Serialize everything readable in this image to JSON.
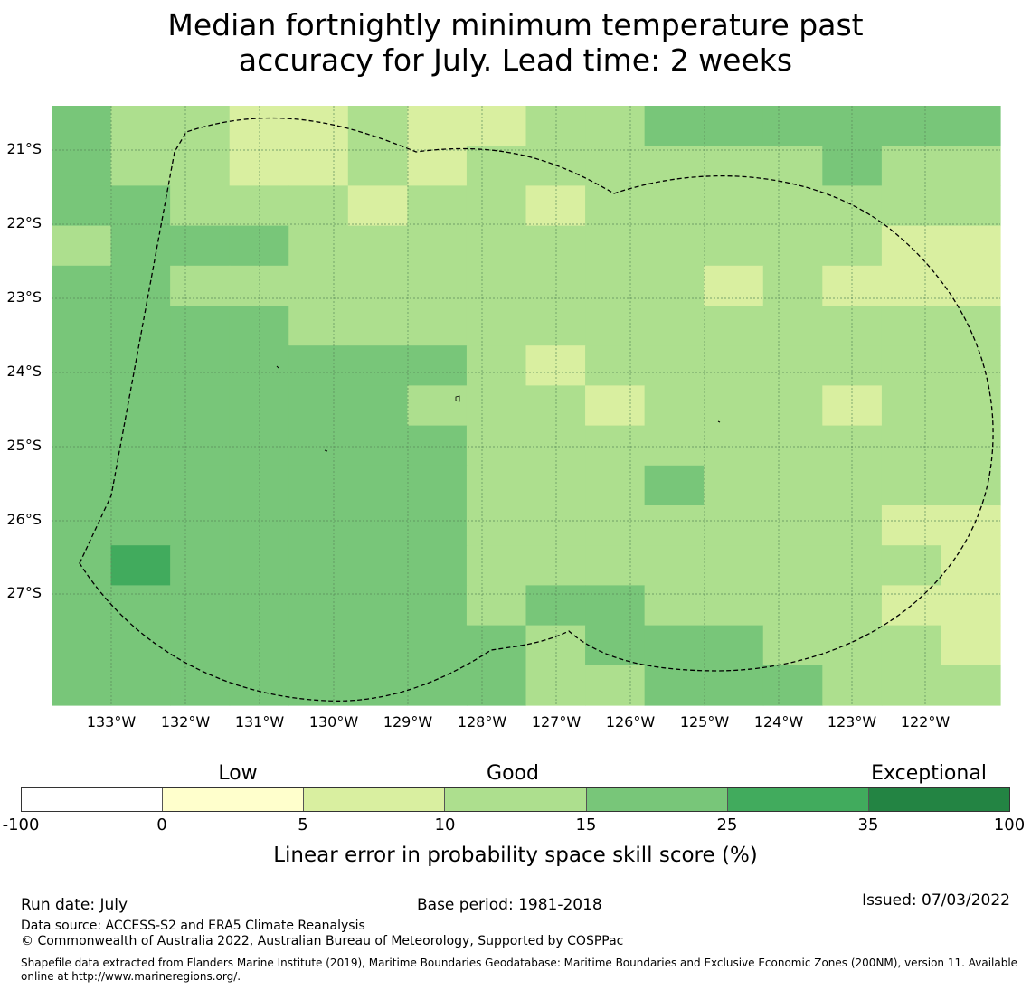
{
  "title": {
    "line1": "Median fortnightly minimum temperature past",
    "line2": "accuracy for July. Lead time: 2 weeks"
  },
  "map": {
    "lat_labels": [
      "21°S",
      "22°S",
      "23°S",
      "24°S",
      "25°S",
      "26°S",
      "27°S"
    ],
    "lon_labels": [
      "133°W",
      "132°W",
      "131°W",
      "130°W",
      "129°W",
      "128°W",
      "127°W",
      "126°W",
      "125°W",
      "124°W",
      "123°W",
      "122°W"
    ],
    "bin_colors": {
      "5-10": "#d9efa0",
      "10-15": "#addf8e",
      "15-25": "#78c679",
      "25-35": "#41ab5d"
    },
    "grid": [
      [
        "15-25",
        "10-15",
        "10-15",
        "5-10",
        "5-10",
        "10-15",
        "5-10",
        "5-10",
        "10-15",
        "10-15",
        "15-25",
        "15-25",
        "15-25",
        "15-25",
        "15-25",
        "15-25"
      ],
      [
        "15-25",
        "10-15",
        "10-15",
        "5-10",
        "5-10",
        "10-15",
        "5-10",
        "10-15",
        "10-15",
        "10-15",
        "10-15",
        "10-15",
        "10-15",
        "15-25",
        "10-15",
        "10-15"
      ],
      [
        "15-25",
        "15-25",
        "10-15",
        "10-15",
        "10-15",
        "5-10",
        "10-15",
        "10-15",
        "5-10",
        "10-15",
        "10-15",
        "10-15",
        "10-15",
        "10-15",
        "10-15",
        "10-15"
      ],
      [
        "10-15",
        "15-25",
        "15-25",
        "15-25",
        "10-15",
        "10-15",
        "10-15",
        "10-15",
        "10-15",
        "10-15",
        "10-15",
        "10-15",
        "10-15",
        "10-15",
        "5-10",
        "5-10"
      ],
      [
        "15-25",
        "15-25",
        "10-15",
        "10-15",
        "10-15",
        "10-15",
        "10-15",
        "10-15",
        "10-15",
        "10-15",
        "10-15",
        "5-10",
        "10-15",
        "5-10",
        "5-10",
        "5-10"
      ],
      [
        "15-25",
        "15-25",
        "15-25",
        "15-25",
        "10-15",
        "10-15",
        "10-15",
        "10-15",
        "10-15",
        "10-15",
        "10-15",
        "10-15",
        "10-15",
        "10-15",
        "10-15",
        "10-15"
      ],
      [
        "15-25",
        "15-25",
        "15-25",
        "15-25",
        "15-25",
        "15-25",
        "15-25",
        "10-15",
        "5-10",
        "10-15",
        "10-15",
        "10-15",
        "10-15",
        "10-15",
        "10-15",
        "10-15"
      ],
      [
        "15-25",
        "15-25",
        "15-25",
        "15-25",
        "15-25",
        "15-25",
        "10-15",
        "10-15",
        "10-15",
        "5-10",
        "10-15",
        "10-15",
        "10-15",
        "5-10",
        "10-15",
        "10-15"
      ],
      [
        "15-25",
        "15-25",
        "15-25",
        "15-25",
        "15-25",
        "15-25",
        "15-25",
        "10-15",
        "10-15",
        "10-15",
        "10-15",
        "10-15",
        "10-15",
        "10-15",
        "10-15",
        "10-15"
      ],
      [
        "15-25",
        "15-25",
        "15-25",
        "15-25",
        "15-25",
        "15-25",
        "15-25",
        "10-15",
        "10-15",
        "10-15",
        "15-25",
        "10-15",
        "10-15",
        "10-15",
        "10-15",
        "10-15"
      ],
      [
        "15-25",
        "15-25",
        "15-25",
        "15-25",
        "15-25",
        "15-25",
        "15-25",
        "10-15",
        "10-15",
        "10-15",
        "10-15",
        "10-15",
        "10-15",
        "10-15",
        "5-10",
        "5-10"
      ],
      [
        "15-25",
        "25-35",
        "15-25",
        "15-25",
        "15-25",
        "15-25",
        "15-25",
        "10-15",
        "10-15",
        "10-15",
        "10-15",
        "10-15",
        "10-15",
        "10-15",
        "10-15",
        "5-10"
      ],
      [
        "15-25",
        "15-25",
        "15-25",
        "15-25",
        "15-25",
        "15-25",
        "15-25",
        "10-15",
        "15-25",
        "15-25",
        "10-15",
        "10-15",
        "10-15",
        "10-15",
        "5-10",
        "5-10"
      ],
      [
        "15-25",
        "15-25",
        "15-25",
        "15-25",
        "15-25",
        "15-25",
        "15-25",
        "15-25",
        "10-15",
        "15-25",
        "15-25",
        "15-25",
        "10-15",
        "10-15",
        "10-15",
        "5-10"
      ],
      [
        "15-25",
        "15-25",
        "15-25",
        "15-25",
        "15-25",
        "15-25",
        "15-25",
        "15-25",
        "10-15",
        "10-15",
        "15-25",
        "15-25",
        "15-25",
        "10-15",
        "10-15",
        "10-15"
      ]
    ]
  },
  "colorbar": {
    "category_labels": [
      "Low",
      "Good",
      "Exceptional"
    ],
    "ticks": [
      "-100",
      "0",
      "5",
      "10",
      "15",
      "25",
      "35",
      "100"
    ],
    "colors": [
      "#ffffff",
      "#ffffcc",
      "#d9efa0",
      "#addf8e",
      "#78c679",
      "#41ab5d",
      "#238443"
    ],
    "axis_label": "Linear error in probability space skill score (%)"
  },
  "footer": {
    "run_date": "Run date: July",
    "base_period": "Base period: 1981-2018",
    "issued": "Issued: 07/03/2022",
    "data_source": "Data source: ACCESS-S2 and ERA5 Climate Reanalysis",
    "copyright": "© Commonwealth of Australia 2022, Australian Bureau of Meteorology, Supported by COSPPac",
    "shapefile_1": "Shapefile data extracted from Flanders Marine Institute (2019), Maritime Boundaries Geodatabase: Maritime Boundaries and Exclusive Economic Zones (200NM), version 11. Available",
    "shapefile_2": "online at http://www.marineregions.org/."
  }
}
